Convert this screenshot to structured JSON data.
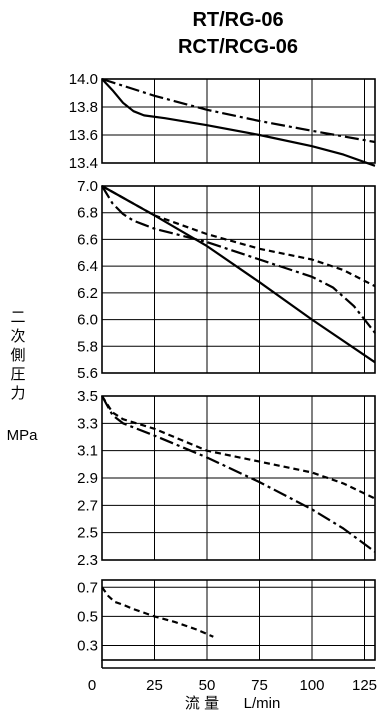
{
  "titles": [
    "RT/RG-06",
    "RCT/RCG-06"
  ],
  "ylabel": {
    "chars": [
      "二",
      "次",
      "側",
      "圧",
      "力"
    ],
    "unit": "MPa"
  },
  "xlabel": {
    "text": "流 量",
    "unit": "L/min"
  },
  "chart_data": {
    "type": "line",
    "x_ticks": [
      "0",
      "25",
      "50",
      "75",
      "100",
      "125"
    ],
    "xlim": [
      0,
      130
    ],
    "panels": [
      {
        "ylim": [
          13.4,
          14.0
        ],
        "y_ticks": [
          "14.0",
          "13.8",
          "13.6",
          "13.4"
        ],
        "series": [
          {
            "style": "dashdot",
            "x": [
              0,
              25,
              50,
              75,
              100,
              130
            ],
            "y": [
              14.0,
              13.88,
              13.78,
              13.7,
              13.63,
              13.55
            ]
          },
          {
            "style": "solid",
            "x": [
              0,
              5,
              10,
              15,
              20,
              30,
              50,
              75,
              100,
              115,
              130
            ],
            "y": [
              14.0,
              13.92,
              13.83,
              13.77,
              13.74,
              13.72,
              13.67,
              13.6,
              13.52,
              13.46,
              13.38
            ]
          }
        ]
      },
      {
        "ylim": [
          5.6,
          7.0
        ],
        "y_ticks": [
          "7.0",
          "6.8",
          "6.6",
          "6.4",
          "6.2",
          "6.0",
          "5.8",
          "5.6"
        ],
        "series": [
          {
            "style": "dashed",
            "x": [
              0,
              25,
              50,
              75,
              100,
              115,
              130
            ],
            "y": [
              7.0,
              6.78,
              6.64,
              6.53,
              6.45,
              6.37,
              6.25
            ]
          },
          {
            "style": "dashdot",
            "x": [
              0,
              5,
              10,
              15,
              20,
              25,
              50,
              75,
              100,
              110,
              120,
              130
            ],
            "y": [
              7.0,
              6.87,
              6.79,
              6.74,
              6.71,
              6.68,
              6.58,
              6.45,
              6.32,
              6.24,
              6.1,
              5.9
            ]
          },
          {
            "style": "solid",
            "x": [
              0,
              25,
              50,
              75,
              100,
              130
            ],
            "y": [
              7.0,
              6.78,
              6.55,
              6.28,
              6.0,
              5.68
            ]
          }
        ]
      },
      {
        "ylim": [
          2.3,
          3.5
        ],
        "y_ticks": [
          "3.5",
          "3.3",
          "3.1",
          "2.9",
          "2.7",
          "2.5",
          "2.3"
        ],
        "series": [
          {
            "style": "dashed",
            "x": [
              0,
              5,
              10,
              25,
              50,
              75,
              100,
              115,
              130
            ],
            "y": [
              3.5,
              3.38,
              3.33,
              3.26,
              3.1,
              3.02,
              2.94,
              2.86,
              2.75
            ]
          },
          {
            "style": "dashdot",
            "x": [
              0,
              5,
              10,
              15,
              25,
              50,
              75,
              100,
              115,
              130
            ],
            "y": [
              3.5,
              3.36,
              3.3,
              3.27,
              3.21,
              3.05,
              2.87,
              2.67,
              2.53,
              2.36
            ]
          }
        ]
      },
      {
        "ylim": [
          0.2,
          0.75
        ],
        "y_ticks": [
          "0.7",
          "0.5",
          "0.3"
        ],
        "series": [
          {
            "style": "dashed",
            "x": [
              0,
              3,
              6,
              10,
              15,
              25,
              35,
              45,
              53
            ],
            "y": [
              0.7,
              0.64,
              0.6,
              0.58,
              0.55,
              0.5,
              0.46,
              0.41,
              0.36
            ]
          }
        ]
      }
    ]
  }
}
